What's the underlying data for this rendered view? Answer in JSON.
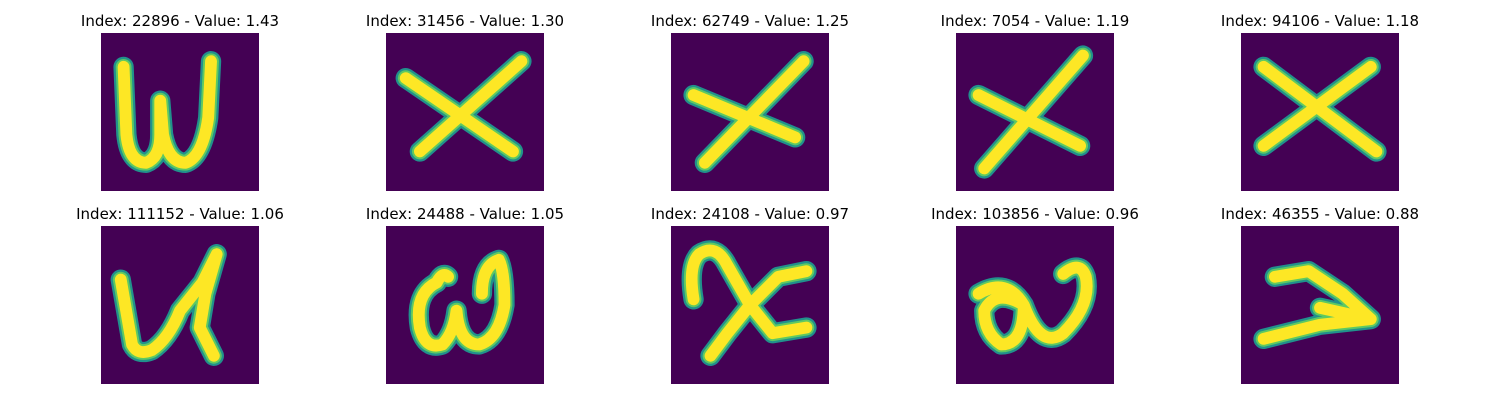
{
  "colors": {
    "background": "#440154",
    "stroke_halo": "#21918c",
    "stroke_mid": "#5ec962",
    "stroke_core": "#fde725"
  },
  "panels": [
    {
      "title": "Index: 22896 - Value: 1.43",
      "glyph": "w"
    },
    {
      "title": "Index: 31456 - Value: 1.30",
      "glyph": "x"
    },
    {
      "title": "Index: 62749 - Value: 1.25",
      "glyph": "x"
    },
    {
      "title": "Index: 7054 - Value: 1.19",
      "glyph": "x"
    },
    {
      "title": "Index: 94106 - Value: 1.18",
      "glyph": "x"
    },
    {
      "title": "Index: 111152 - Value: 1.06",
      "glyph": "w"
    },
    {
      "title": "Index: 24488 - Value: 1.05",
      "glyph": "w"
    },
    {
      "title": "Index: 24108 - Value: 0.97",
      "glyph": "x"
    },
    {
      "title": "Index: 103856 - Value: 0.96",
      "glyph": "2"
    },
    {
      "title": "Index: 46355 - Value: 0.88",
      "glyph": "z"
    }
  ]
}
